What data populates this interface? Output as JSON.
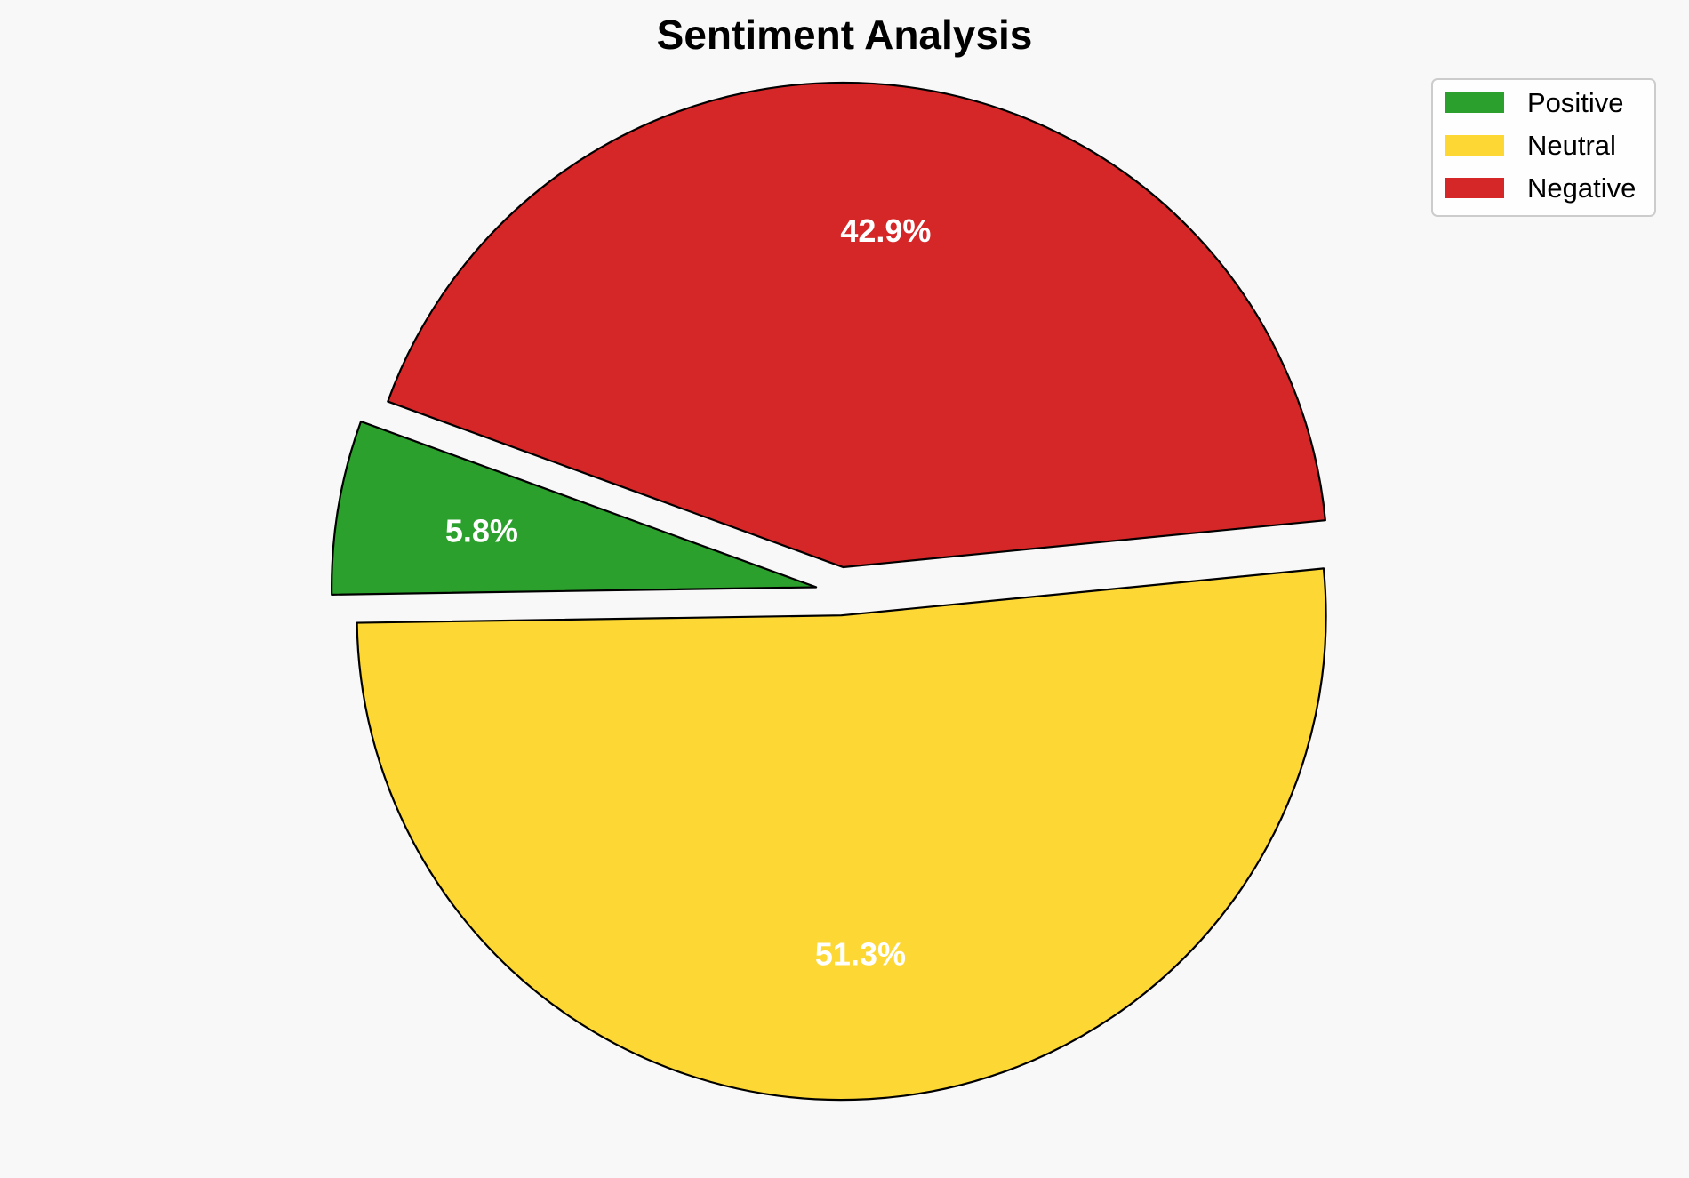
{
  "chart_data": {
    "type": "pie",
    "title": "Sentiment Analysis",
    "slices": [
      {
        "name": "Positive",
        "value": 5.8,
        "label": "5.8%",
        "color": "#2ca02c",
        "exploded": true
      },
      {
        "name": "Neutral",
        "value": 51.3,
        "label": "51.3%",
        "color": "#fdd835",
        "exploded": true
      },
      {
        "name": "Negative",
        "value": 42.9,
        "label": "42.9%",
        "color": "#d62728",
        "exploded": true
      }
    ],
    "legend": {
      "placement": "top-right",
      "entries": [
        "Positive",
        "Neutral",
        "Negative"
      ]
    }
  }
}
